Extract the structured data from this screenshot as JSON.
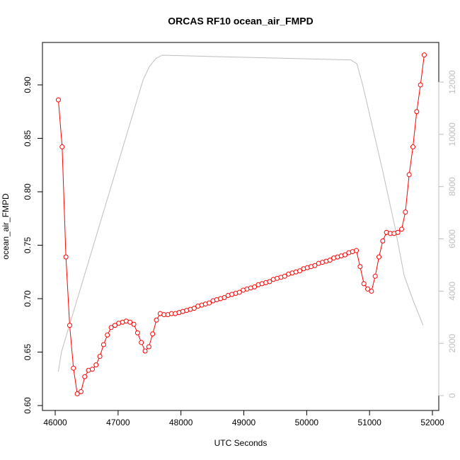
{
  "chart_data": {
    "type": "line",
    "title": "ORCAS RF10 ocean_air_FMPD",
    "xlabel": "UTC Seconds",
    "ylabel": "ocean_air_FMPD",
    "xlim": [
      45797,
      52101
    ],
    "ylim": [
      0.5954,
      0.9397
    ],
    "y2lim": [
      -569,
      13517
    ],
    "xticks": [
      46000,
      47000,
      48000,
      49000,
      50000,
      51000,
      52000
    ],
    "yticks": [
      {
        "value": 0.6,
        "label": "0.60"
      },
      0.65,
      {
        "value": 0.7,
        "label": "0.70"
      },
      0.75,
      {
        "value": 0.8,
        "label": "0.80"
      },
      0.85,
      {
        "value": 0.9,
        "label": "0.90"
      }
    ],
    "y2ticks": [
      0,
      2000,
      4000,
      6000,
      8000,
      10000,
      12000
    ],
    "series": [
      {
        "color": "#ff0000",
        "markers": true,
        "x": [
          46050,
          46110,
          46170,
          46230,
          46290,
          46350,
          46410,
          46470,
          46530,
          46590,
          46650,
          46710,
          46770,
          46830,
          46890,
          46950,
          47010,
          47070,
          47130,
          47190,
          47250,
          47310,
          47370,
          47430,
          47490,
          47550,
          47610,
          47670,
          47730,
          47790,
          47850,
          47910,
          47970,
          48030,
          48090,
          48150,
          48210,
          48270,
          48330,
          48390,
          48450,
          48510,
          48570,
          48630,
          48690,
          48750,
          48810,
          48870,
          48930,
          48990,
          49050,
          49110,
          49170,
          49230,
          49290,
          49350,
          49410,
          49470,
          49530,
          49590,
          49650,
          49710,
          49770,
          49830,
          49890,
          49950,
          50010,
          50070,
          50130,
          50190,
          50250,
          50310,
          50370,
          50430,
          50490,
          50550,
          50610,
          50670,
          50730,
          50790,
          50850,
          50910,
          50970,
          51030,
          51090,
          51150,
          51210,
          51270,
          51330,
          51390,
          51450,
          51510,
          51570,
          51630,
          51690,
          51750,
          51810,
          51870
        ],
        "values": [
          0.886,
          0.842,
          0.739,
          0.675,
          0.635,
          0.611,
          0.613,
          0.627,
          0.633,
          0.634,
          0.638,
          0.646,
          0.657,
          0.666,
          0.673,
          0.675,
          0.677,
          0.678,
          0.679,
          0.678,
          0.676,
          0.668,
          0.659,
          0.651,
          0.655,
          0.667,
          0.68,
          0.686,
          0.685,
          0.685,
          0.686,
          0.686,
          0.687,
          0.688,
          0.689,
          0.69,
          0.691,
          0.693,
          0.694,
          0.695,
          0.696,
          0.698,
          0.699,
          0.7,
          0.701,
          0.703,
          0.704,
          0.705,
          0.706,
          0.708,
          0.709,
          0.71,
          0.711,
          0.713,
          0.714,
          0.715,
          0.716,
          0.718,
          0.719,
          0.72,
          0.721,
          0.723,
          0.724,
          0.725,
          0.726,
          0.728,
          0.729,
          0.73,
          0.731,
          0.733,
          0.734,
          0.735,
          0.736,
          0.738,
          0.739,
          0.74,
          0.741,
          0.743,
          0.744,
          0.745,
          0.73,
          0.714,
          0.709,
          0.707,
          0.721,
          0.739,
          0.754,
          0.762,
          0.761,
          0.761,
          0.762,
          0.765,
          0.781,
          0.816,
          0.842,
          0.875,
          0.9,
          0.928
        ]
      },
      {
        "color": "#bebebe",
        "axis": "y2",
        "markers": false,
        "x": [
          46050,
          46100,
          47400,
          47500,
          47600,
          47700,
          48500,
          49500,
          50500,
          50700,
          50800,
          50900,
          51200,
          51400,
          51550,
          51700,
          51850
        ],
        "values": [
          920,
          1680,
          12100,
          12600,
          12900,
          13030,
          12980,
          12920,
          12860,
          12850,
          12700,
          11800,
          8700,
          6500,
          4600,
          3600,
          2700
        ]
      }
    ]
  }
}
